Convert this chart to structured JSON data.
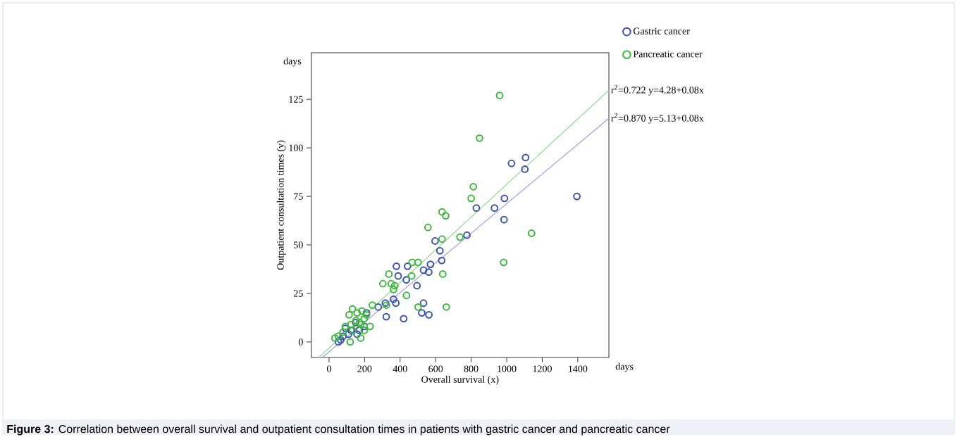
{
  "chart_data": {
    "type": "scatter",
    "xlabel": "Overall survival (x)",
    "ylabel": "Outpatient consultation times (y)",
    "xlim": [
      -100,
      1575
    ],
    "ylim": [
      -8,
      149
    ],
    "xticks": [
      0,
      200,
      400,
      600,
      800,
      1000,
      1200,
      1400
    ],
    "yticks": [
      0,
      25,
      50,
      75,
      100,
      125
    ],
    "grid": false,
    "legend": "top right",
    "series": [
      {
        "name": "Gastric cancer",
        "marker": "circle",
        "color": "#3f51b5",
        "x": [
          1395,
          1106,
          1102,
          1027,
          987,
          985,
          931,
          829,
          776,
          597,
          624,
          634,
          571,
          532,
          561,
          379,
          442,
          389,
          435,
          495,
          363,
          376,
          317,
          277,
          532,
          522,
          562,
          322,
          420,
          211,
          92,
          124,
          53,
          79,
          158,
          198,
          150,
          110,
          170,
          66
        ],
        "values": [
          75,
          95,
          89,
          92,
          74,
          63,
          69,
          69,
          55,
          52,
          47,
          42,
          40,
          37,
          36,
          39,
          39,
          34,
          32,
          29,
          22,
          20,
          20,
          18,
          20,
          15,
          14,
          13,
          12,
          15,
          7,
          6,
          0,
          3,
          4,
          8,
          10,
          4,
          6,
          1
        ]
      },
      {
        "name": "Pancreatic cancer",
        "marker": "circle",
        "color": "#3cb93c",
        "x": [
          960,
          847,
          812,
          800,
          636,
          656,
          557,
          636,
          737,
          1140,
          983,
          640,
          468,
          501,
          465,
          337,
          303,
          350,
          370,
          363,
          436,
          244,
          323,
          501,
          660,
          132,
          158,
          198,
          171,
          231,
          124,
          92,
          53,
          33,
          79,
          119,
          178,
          132,
          198,
          152,
          178,
          211,
          113,
          185
        ],
        "values": [
          127,
          105,
          80,
          74,
          67,
          65,
          59,
          53,
          54,
          56,
          41,
          35,
          41,
          41,
          34,
          35,
          30,
          30,
          29,
          27,
          24,
          19,
          19,
          18,
          18,
          17,
          15,
          12,
          10,
          8,
          9,
          8,
          3,
          2,
          5,
          0,
          2,
          6,
          6,
          11,
          9,
          14,
          14,
          16
        ]
      },
      {
        "type": "line",
        "marker": "none",
        "color": "#90dc90",
        "x": [
          -58,
          1575
        ],
        "values": [
          -8,
          129.7
        ]
      },
      {
        "type": "line",
        "marker": "none",
        "color": "#9aa2dc",
        "x": [
          -38,
          1575
        ],
        "values": [
          -8,
          115.2
        ]
      }
    ],
    "annotations": [
      "days",
      "days",
      "**Figure 3:** Correlation between overall survival and outpatient consultation times in patients with gastric cancer and pancreatic cancer",
      {
        "text": "r$^{2}$=0.722 y=4.28+0.08x",
        "x": 1575,
        "y": 129.7
      },
      {
        "text": "r$^{2}$=0.870 y=5.13+0.08x",
        "x": 1575,
        "y": 115.2
      }
    ]
  }
}
